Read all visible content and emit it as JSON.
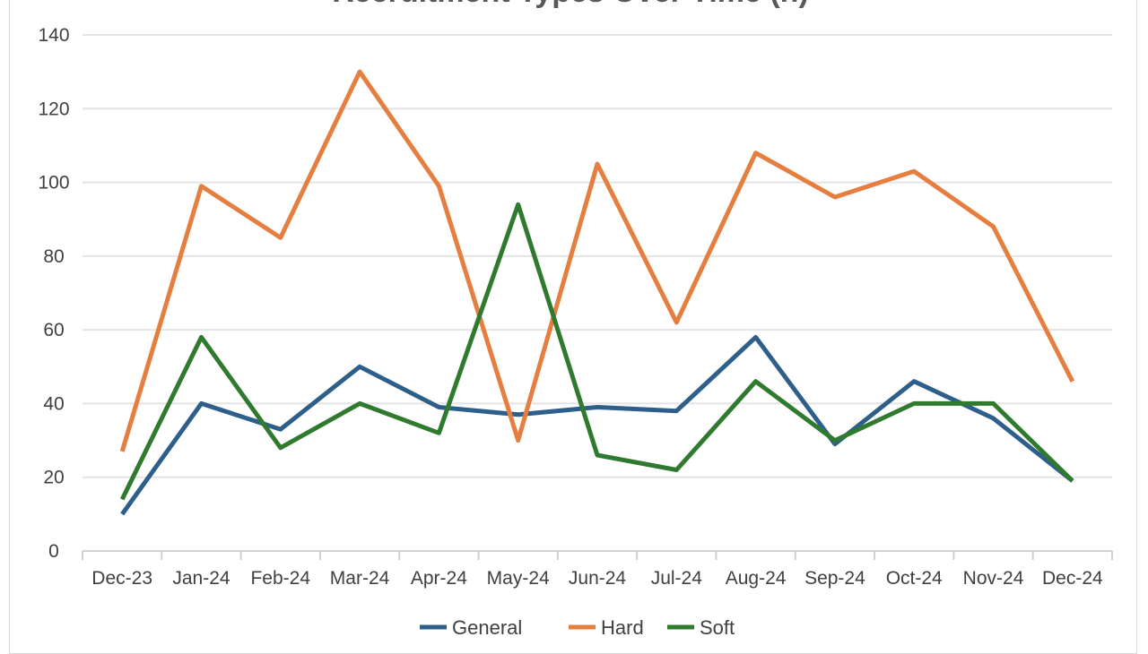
{
  "chart_data": {
    "type": "line",
    "title": "Recruitment Types Over Time (n)",
    "xlabel": "",
    "ylabel": "",
    "categories": [
      "Dec-23",
      "Jan-24",
      "Feb-24",
      "Mar-24",
      "Apr-24",
      "May-24",
      "Jun-24",
      "Jul-24",
      "Aug-24",
      "Sep-24",
      "Oct-24",
      "Nov-24",
      "Dec-24"
    ],
    "ylim": [
      0,
      140
    ],
    "yticks": [
      0,
      20,
      40,
      60,
      80,
      100,
      120,
      140
    ],
    "grid": true,
    "legend_position": "bottom",
    "series": [
      {
        "name": "General",
        "color": "#2e5f8a",
        "values": [
          10,
          40,
          33,
          50,
          39,
          37,
          39,
          38,
          58,
          29,
          46,
          36,
          19
        ]
      },
      {
        "name": "Hard",
        "color": "#e57e3f",
        "values": [
          27,
          99,
          85,
          130,
          99,
          30,
          105,
          62,
          108,
          96,
          103,
          88,
          46
        ]
      },
      {
        "name": "Soft",
        "color": "#2f7a2e",
        "values": [
          14,
          58,
          28,
          40,
          32,
          94,
          26,
          22,
          46,
          30,
          40,
          40,
          19
        ]
      }
    ]
  }
}
